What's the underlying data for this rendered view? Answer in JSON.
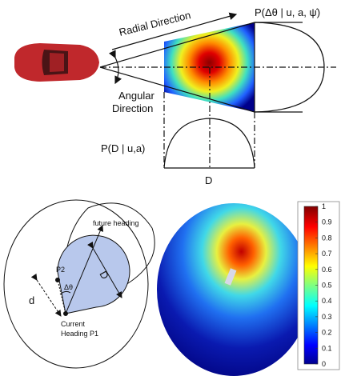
{
  "top": {
    "radial_label": "Radial Direction",
    "angular_label": [
      "Angular",
      "Direction"
    ],
    "angle_prob": "P(Δθ | u, a, ψ̇)",
    "distance_prob": "P(D | u,a)",
    "distance_axis": "D"
  },
  "bottom_left": {
    "future": "future heading",
    "p2": "P2",
    "delta": "Δθ",
    "big_d": "D",
    "small_d": "d",
    "current": [
      "Current",
      "Heading P1"
    ]
  },
  "colorbar": {
    "ticks": [
      0,
      0.1,
      0.2,
      0.3,
      0.4,
      0.5,
      0.6,
      0.7,
      0.8,
      0.9,
      1
    ],
    "lim": [
      0,
      1
    ]
  }
}
